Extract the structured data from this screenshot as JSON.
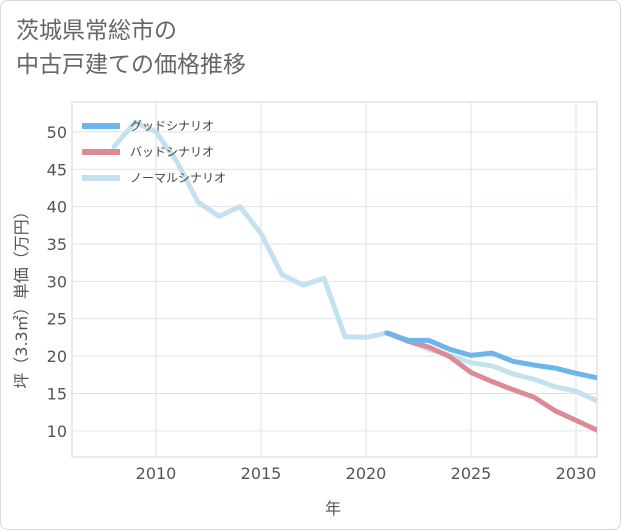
{
  "title_lines": [
    "茨城県常総市の",
    "中古戸建ての価格推移"
  ],
  "chart_data": {
    "type": "line",
    "title": "茨城県常総市の中古戸建ての価格推移",
    "xlabel": "年",
    "ylabel": "坪（3.3㎡）単価（万円）",
    "xlim": [
      2006,
      2031
    ],
    "ylim": [
      6.5,
      54
    ],
    "x_ticks": [
      2010,
      2015,
      2020,
      2025,
      2030
    ],
    "y_ticks": [
      10,
      15,
      20,
      25,
      30,
      35,
      40,
      45,
      50
    ],
    "grid": true,
    "legend_position": "top-left",
    "series": [
      {
        "name": "グッドシナリオ",
        "color": "#6cb6ec",
        "x": [
          2021,
          2022,
          2023,
          2024,
          2025,
          2026,
          2027,
          2028,
          2029,
          2030,
          2031
        ],
        "y": [
          23.1,
          22.1,
          22.1,
          20.9,
          20.1,
          20.4,
          19.3,
          18.8,
          18.4,
          17.7,
          17.1
        ]
      },
      {
        "name": "バッドシナリオ",
        "color": "#dc8a95",
        "x": [
          2021,
          2022,
          2023,
          2024,
          2025,
          2026,
          2027,
          2028,
          2029,
          2030,
          2031
        ],
        "y": [
          23.1,
          22.0,
          21.2,
          19.9,
          17.8,
          16.6,
          15.5,
          14.5,
          12.7,
          11.4,
          10.1
        ]
      },
      {
        "name": "ノーマルシナリオ",
        "color": "#c3e1ee",
        "x": [
          2008,
          2009,
          2010,
          2011,
          2012,
          2013,
          2014,
          2015,
          2016,
          2017,
          2018,
          2019,
          2020,
          2021,
          2022,
          2023,
          2024,
          2025,
          2026,
          2027,
          2028,
          2029,
          2030,
          2031
        ],
        "y": [
          48.0,
          51.3,
          50.0,
          46.0,
          40.6,
          38.7,
          40.0,
          36.4,
          30.9,
          29.5,
          30.4,
          22.6,
          22.5,
          23.1,
          22.1,
          20.9,
          20.1,
          19.1,
          18.7,
          17.6,
          16.9,
          15.9,
          15.3,
          14.0
        ]
      }
    ]
  }
}
